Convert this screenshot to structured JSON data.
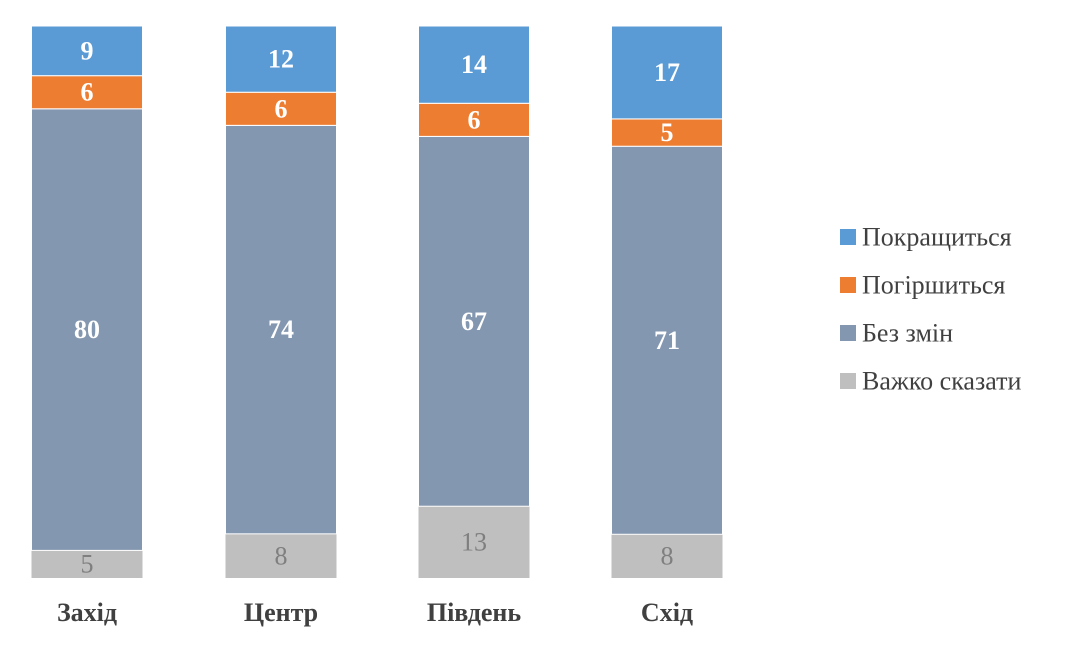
{
  "chart_data": {
    "type": "bar",
    "stacked": true,
    "percent_stacked": true,
    "categories": [
      "Захід",
      "Центр",
      "Південь",
      "Схід"
    ],
    "series": [
      {
        "name": "Важко сказати",
        "values": [
          5,
          8,
          13,
          8
        ],
        "color": "#bfbfbf",
        "label_color": "#7f7f7f",
        "label_bold": false
      },
      {
        "name": "Без змін",
        "values": [
          80,
          74,
          67,
          71
        ],
        "color": "#8497b0",
        "label_color": "#ffffff",
        "label_bold": true
      },
      {
        "name": "Погіршиться",
        "values": [
          6,
          6,
          6,
          5
        ],
        "color": "#ed7d31",
        "label_color": "#ffffff",
        "label_bold": true
      },
      {
        "name": "Покращиться",
        "values": [
          9,
          12,
          14,
          17
        ],
        "color": "#5b9bd5",
        "label_color": "#ffffff",
        "label_bold": true
      }
    ],
    "legend_order": [
      "Покращиться",
      "Погіршиться",
      "Без змін",
      "Важко сказати"
    ],
    "legend_position": "right",
    "grid": false
  }
}
